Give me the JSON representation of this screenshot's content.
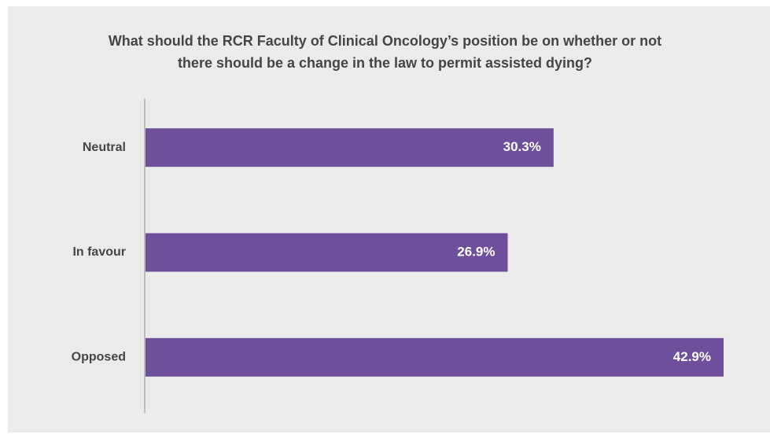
{
  "chart_data": {
    "type": "bar",
    "orientation": "horizontal",
    "title": "What should the RCR Faculty of Clinical Oncology’s position be on whether or not there should be a change in the law to permit assisted dying?",
    "categories": [
      "Neutral",
      "In favour",
      "Opposed"
    ],
    "values": [
      30.3,
      26.9,
      42.9
    ],
    "value_labels": [
      "30.3%",
      "26.9%",
      "42.9%"
    ],
    "color": "#6e4f9c"
  }
}
